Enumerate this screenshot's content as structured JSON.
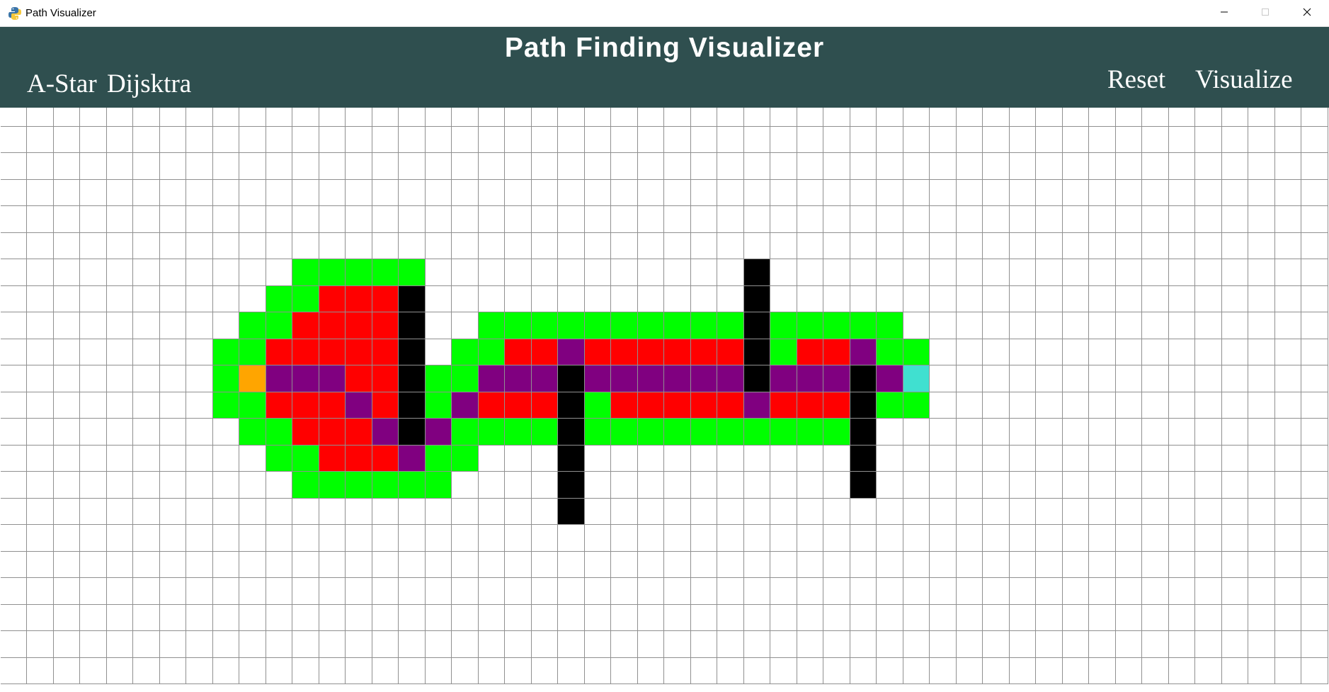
{
  "window": {
    "title": "Path Visualizer",
    "app_icon": "python-icon",
    "controls": [
      "minimize-icon",
      "maximize-icon",
      "close-icon"
    ]
  },
  "header": {
    "title": "Path Finding Visualizer",
    "background": "#2f4f4f",
    "text_color": "#ffffff",
    "algorithms": [
      "A-Star",
      "Dijsktra"
    ],
    "reset_label": "Reset",
    "visualize_label": "Visualize"
  },
  "grid": {
    "columns": 50,
    "rows": 22,
    "line_color": "#909090",
    "colors": {
      "empty": "#ffffff",
      "open": "#00ff00",
      "closed": "#ff0000",
      "path": "#800080",
      "wall": "#000000",
      "start": "#ffa500",
      "end": "#40e0d0"
    },
    "states": {
      "open": [
        [
          11,
          6
        ],
        [
          12,
          6
        ],
        [
          13,
          6
        ],
        [
          14,
          6
        ],
        [
          15,
          6
        ],
        [
          10,
          7
        ],
        [
          11,
          7
        ],
        [
          9,
          8
        ],
        [
          10,
          8
        ],
        [
          18,
          8
        ],
        [
          19,
          8
        ],
        [
          20,
          8
        ],
        [
          21,
          8
        ],
        [
          22,
          8
        ],
        [
          23,
          8
        ],
        [
          24,
          8
        ],
        [
          25,
          8
        ],
        [
          26,
          8
        ],
        [
          27,
          8
        ],
        [
          29,
          8
        ],
        [
          30,
          8
        ],
        [
          31,
          8
        ],
        [
          32,
          8
        ],
        [
          33,
          8
        ],
        [
          8,
          9
        ],
        [
          9,
          9
        ],
        [
          17,
          9
        ],
        [
          18,
          9
        ],
        [
          29,
          9
        ],
        [
          33,
          9
        ],
        [
          34,
          9
        ],
        [
          8,
          10
        ],
        [
          16,
          10
        ],
        [
          17,
          10
        ],
        [
          8,
          11
        ],
        [
          9,
          11
        ],
        [
          16,
          11
        ],
        [
          22,
          11
        ],
        [
          33,
          11
        ],
        [
          34,
          11
        ],
        [
          9,
          12
        ],
        [
          10,
          12
        ],
        [
          17,
          12
        ],
        [
          18,
          12
        ],
        [
          19,
          12
        ],
        [
          20,
          12
        ],
        [
          22,
          12
        ],
        [
          23,
          12
        ],
        [
          24,
          12
        ],
        [
          25,
          12
        ],
        [
          26,
          12
        ],
        [
          27,
          12
        ],
        [
          28,
          12
        ],
        [
          29,
          12
        ],
        [
          30,
          12
        ],
        [
          31,
          12
        ],
        [
          10,
          13
        ],
        [
          11,
          13
        ],
        [
          16,
          13
        ],
        [
          17,
          13
        ],
        [
          11,
          14
        ],
        [
          12,
          14
        ],
        [
          13,
          14
        ],
        [
          14,
          14
        ],
        [
          15,
          14
        ],
        [
          16,
          14
        ]
      ],
      "closed": [
        [
          12,
          7
        ],
        [
          13,
          7
        ],
        [
          14,
          7
        ],
        [
          11,
          8
        ],
        [
          12,
          8
        ],
        [
          13,
          8
        ],
        [
          14,
          8
        ],
        [
          10,
          9
        ],
        [
          11,
          9
        ],
        [
          12,
          9
        ],
        [
          13,
          9
        ],
        [
          14,
          9
        ],
        [
          19,
          9
        ],
        [
          20,
          9
        ],
        [
          22,
          9
        ],
        [
          23,
          9
        ],
        [
          24,
          9
        ],
        [
          25,
          9
        ],
        [
          26,
          9
        ],
        [
          27,
          9
        ],
        [
          30,
          9
        ],
        [
          31,
          9
        ],
        [
          13,
          10
        ],
        [
          14,
          10
        ],
        [
          10,
          11
        ],
        [
          11,
          11
        ],
        [
          12,
          11
        ],
        [
          14,
          11
        ],
        [
          18,
          11
        ],
        [
          19,
          11
        ],
        [
          20,
          11
        ],
        [
          23,
          11
        ],
        [
          24,
          11
        ],
        [
          25,
          11
        ],
        [
          26,
          11
        ],
        [
          27,
          11
        ],
        [
          29,
          11
        ],
        [
          30,
          11
        ],
        [
          31,
          11
        ],
        [
          11,
          12
        ],
        [
          12,
          12
        ],
        [
          13,
          12
        ],
        [
          12,
          13
        ],
        [
          13,
          13
        ],
        [
          14,
          13
        ]
      ],
      "path": [
        [
          21,
          9
        ],
        [
          32,
          9
        ],
        [
          10,
          10
        ],
        [
          11,
          10
        ],
        [
          12,
          10
        ],
        [
          18,
          10
        ],
        [
          19,
          10
        ],
        [
          20,
          10
        ],
        [
          22,
          10
        ],
        [
          23,
          10
        ],
        [
          24,
          10
        ],
        [
          25,
          10
        ],
        [
          26,
          10
        ],
        [
          27,
          10
        ],
        [
          29,
          10
        ],
        [
          30,
          10
        ],
        [
          31,
          10
        ],
        [
          33,
          10
        ],
        [
          13,
          11
        ],
        [
          17,
          11
        ],
        [
          28,
          11
        ],
        [
          14,
          12
        ],
        [
          16,
          12
        ],
        [
          15,
          13
        ]
      ],
      "wall": [
        [
          28,
          6
        ],
        [
          15,
          7
        ],
        [
          28,
          7
        ],
        [
          15,
          8
        ],
        [
          28,
          8
        ],
        [
          15,
          9
        ],
        [
          28,
          9
        ],
        [
          15,
          10
        ],
        [
          21,
          10
        ],
        [
          28,
          10
        ],
        [
          32,
          10
        ],
        [
          15,
          11
        ],
        [
          21,
          11
        ],
        [
          32,
          11
        ],
        [
          15,
          12
        ],
        [
          21,
          12
        ],
        [
          32,
          12
        ],
        [
          21,
          13
        ],
        [
          32,
          13
        ],
        [
          21,
          14
        ],
        [
          32,
          14
        ],
        [
          21,
          15
        ]
      ],
      "start": [
        [
          9,
          10
        ]
      ],
      "end": [
        [
          34,
          10
        ]
      ]
    }
  }
}
